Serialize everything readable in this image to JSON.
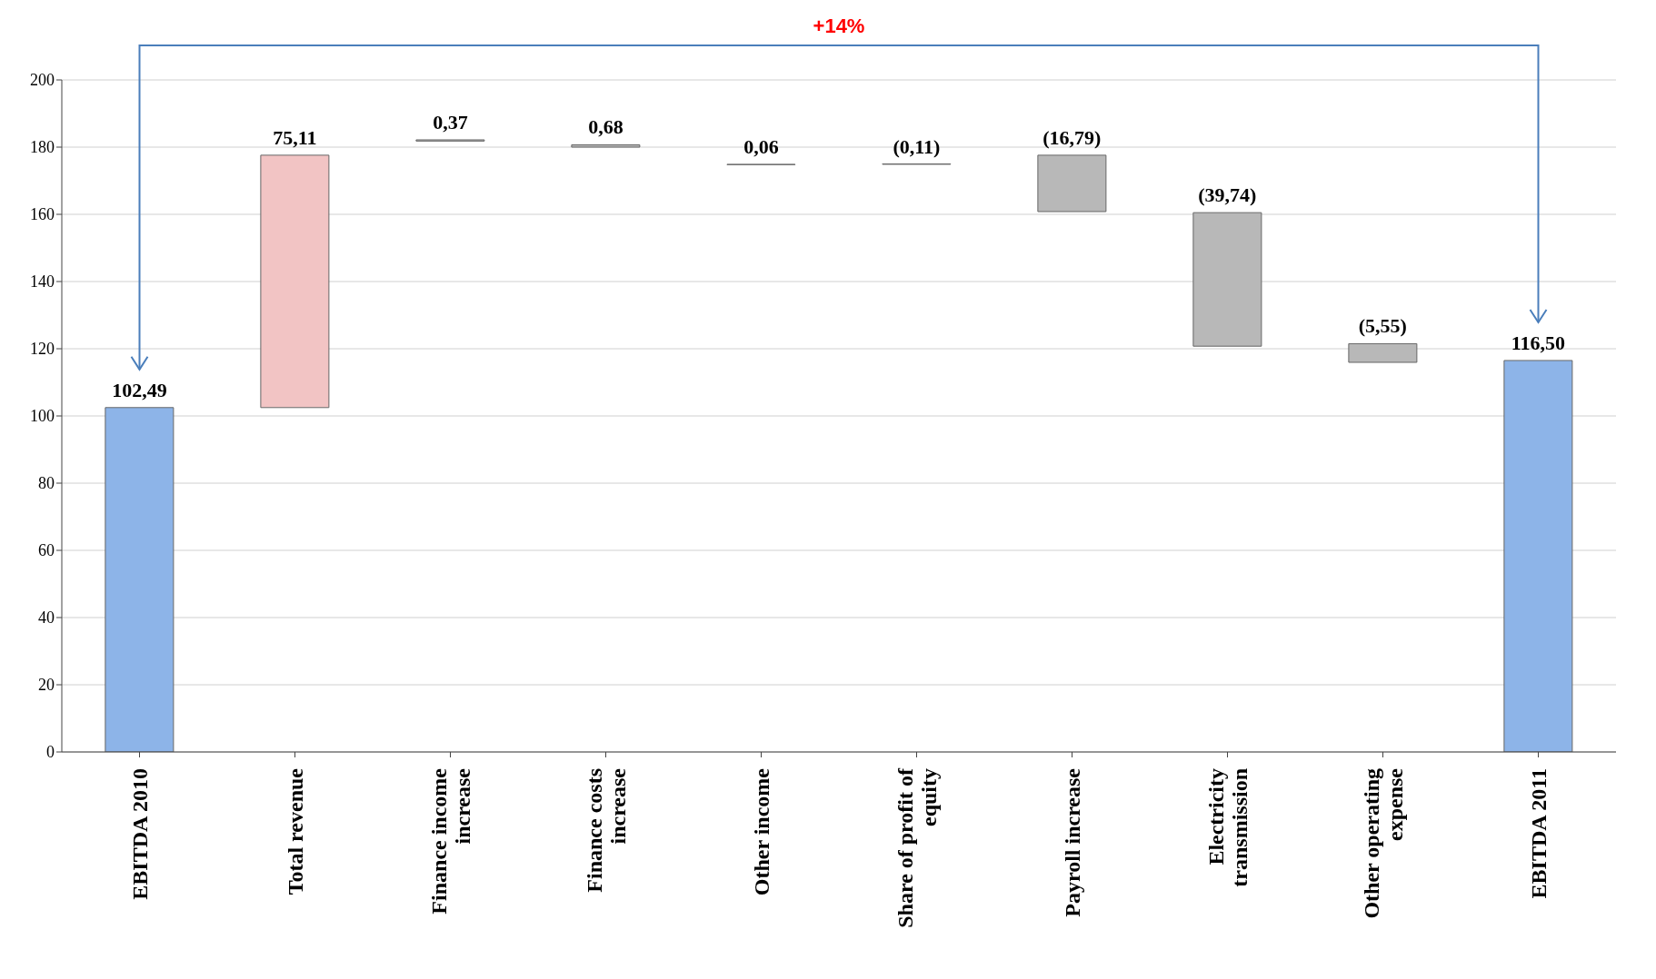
{
  "chart_data": {
    "type": "bar",
    "categories": [
      "EBITDA 2010",
      "Total revenue",
      "Finance income increase",
      "Finance costs increase",
      "Other income",
      "Share of profit of equity",
      "Payroll increase",
      "Electricity transmission",
      "Other operating expense",
      "EBITDA 2011"
    ],
    "values": [
      102.49,
      75.11,
      0.37,
      0.68,
      0.06,
      -0.11,
      -16.79,
      -39.74,
      -5.55,
      116.5
    ],
    "base": [
      0,
      102.49,
      181.8,
      180,
      174.8,
      175,
      177.6,
      160.5,
      121.5,
      0
    ],
    "colors": [
      "#8db4e8",
      "#f2c4c4",
      "#b8b8b8",
      "#b8b8b8",
      "#b8b8b8",
      "#b8b8b8",
      "#b8b8b8",
      "#b8b8b8",
      "#b8b8b8",
      "#8db4e8"
    ],
    "value_labels": [
      "102,49",
      "75,11",
      "0,37",
      "0,68",
      "0,06",
      "(0,11)",
      "(16,79)",
      "(39,74)",
      "(5,55)",
      "116,50"
    ],
    "ylim": [
      0,
      200
    ],
    "yticks": [
      0,
      20,
      40,
      60,
      80,
      100,
      120,
      140,
      160,
      180,
      200
    ],
    "grid": "y",
    "legend": false,
    "annotations": [
      "+14%"
    ]
  }
}
